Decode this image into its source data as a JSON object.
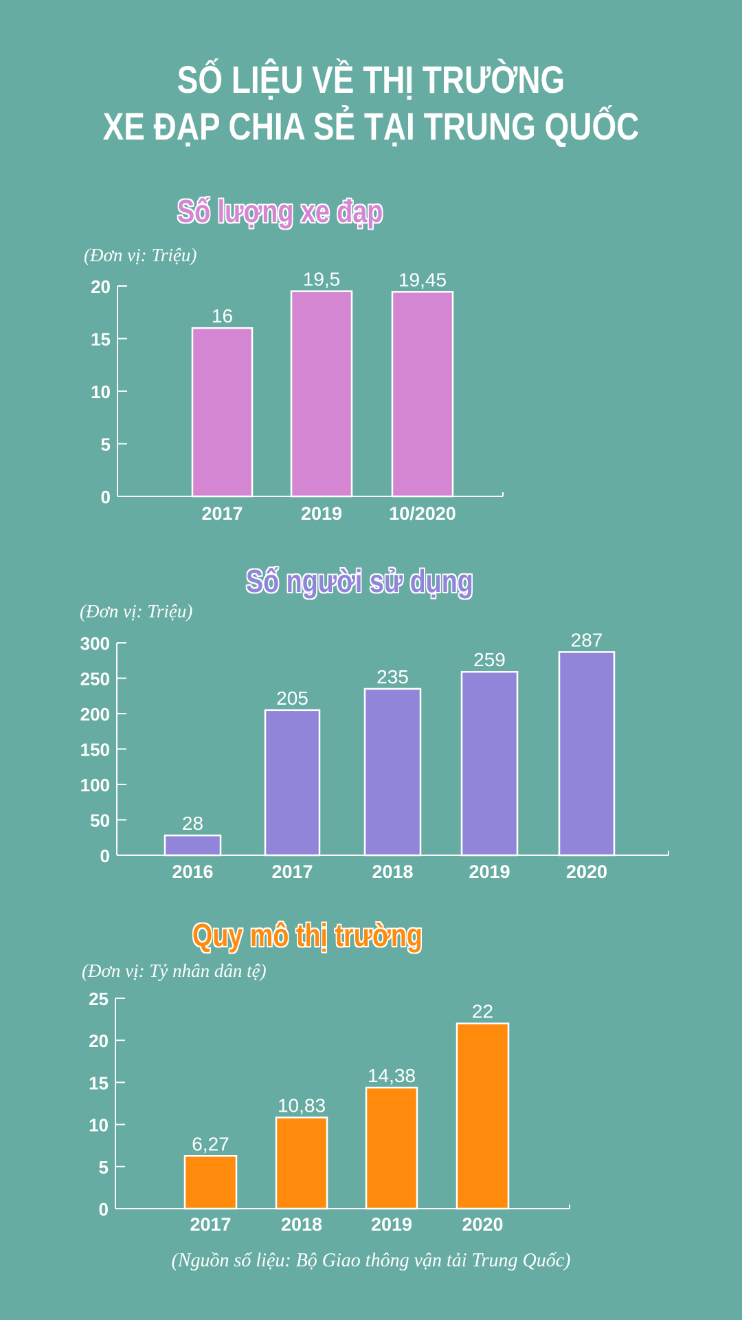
{
  "title": {
    "line1": "SỐ LIỆU VỀ THỊ TRƯỜNG",
    "line2": "XE ĐẠP CHIA SẺ TẠI TRUNG QUỐC"
  },
  "source": "(Nguồn số liệu: Bộ Giao thông vận tải Trung Quốc)",
  "chart_data": [
    {
      "type": "bar",
      "title": "Số lượng xe đạp",
      "unit": "(Đơn vị: Triệu)",
      "color": "#D486D2",
      "categories": [
        "2017",
        "2019",
        "10/2020"
      ],
      "values": [
        16,
        19.5,
        19.45
      ],
      "labels": [
        "16",
        "19,5",
        "19,45"
      ],
      "ylim": [
        0,
        20
      ],
      "yticks": [
        0,
        5,
        10,
        15,
        20
      ]
    },
    {
      "type": "bar",
      "title": "Số người sử dụng",
      "unit": "(Đơn vị: Triệu)",
      "color": "#9085D8",
      "categories": [
        "2016",
        "2017",
        "2018",
        "2019",
        "2020"
      ],
      "values": [
        28,
        205,
        235,
        259,
        287
      ],
      "labels": [
        "28",
        "205",
        "235",
        "259",
        "287"
      ],
      "ylim": [
        0,
        300
      ],
      "yticks": [
        0,
        50,
        100,
        150,
        200,
        250,
        300
      ]
    },
    {
      "type": "bar",
      "title": "Quy mô thị trường",
      "unit": "(Đơn vị: Tỷ nhân dân tệ)",
      "color": "#FF8A0C",
      "categories": [
        "2017",
        "2018",
        "2019",
        "2020"
      ],
      "values": [
        6.27,
        10.83,
        14.38,
        22
      ],
      "labels": [
        "6,27",
        "10,83",
        "14,38",
        "22"
      ],
      "ylim": [
        0,
        25
      ],
      "yticks": [
        0,
        5,
        10,
        15,
        20,
        25
      ]
    }
  ]
}
